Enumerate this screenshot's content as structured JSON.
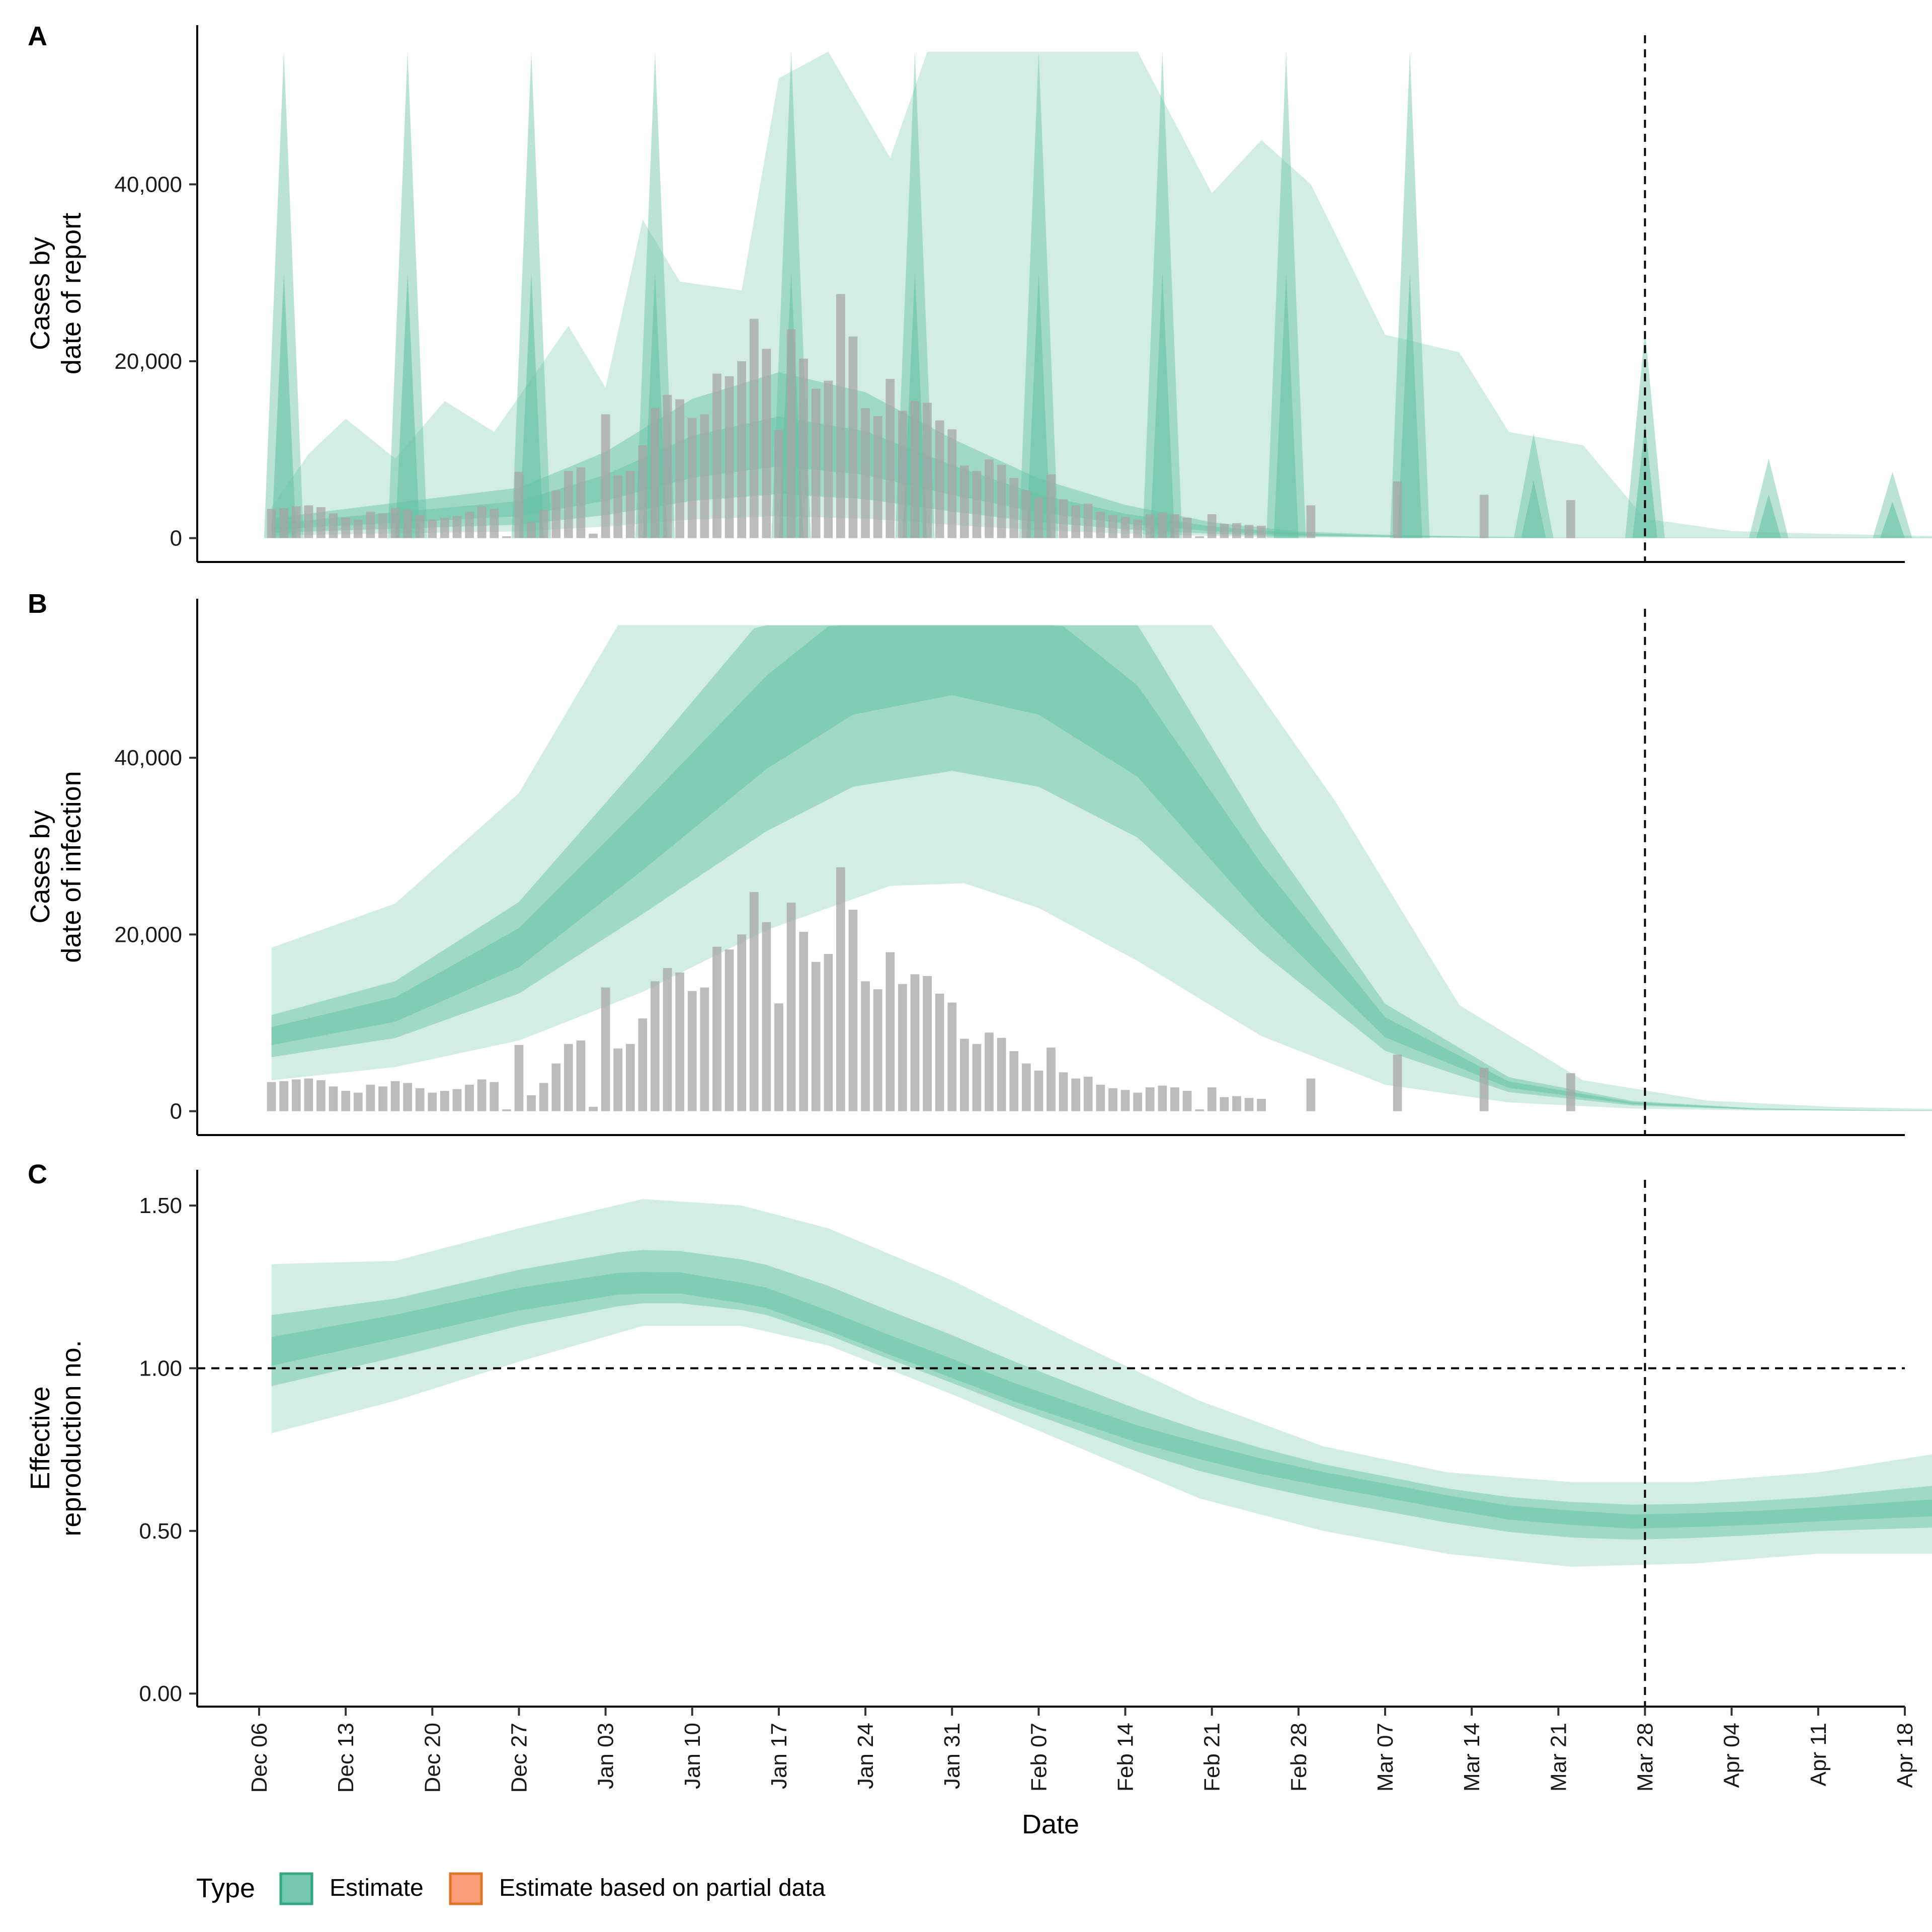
{
  "colors": {
    "estimate": "#66c2a5",
    "estimate_border": "#1b9e77",
    "partial": "#fc8d62",
    "partial_border": "#d95f02",
    "bars": "#a6a6a6",
    "axis": "#000000"
  },
  "legend": {
    "title": "Type",
    "items": [
      {
        "label": "Estimate",
        "color": "#66c2a5",
        "border": "#1b9e77"
      },
      {
        "label": "Estimate based on partial data",
        "color": "#fc8d62",
        "border": "#d95f02"
      }
    ]
  },
  "x_axis": {
    "title": "Date",
    "ticks": [
      "Dec 06",
      "Dec 13",
      "Dec 20",
      "Dec 27",
      "Jan 03",
      "Jan 10",
      "Jan 17",
      "Jan 24",
      "Jan 31",
      "Feb 07",
      "Feb 14",
      "Feb 21",
      "Feb 28",
      "Mar 07",
      "Mar 14",
      "Mar 21",
      "Mar 28",
      "Apr 04",
      "Apr 11",
      "Apr 18"
    ],
    "range": [
      "2020-12-01",
      "2021-04-18"
    ],
    "reference_line": "2021-03-28"
  },
  "chart_data": [
    {
      "panel": "A",
      "type": "area",
      "ylabel": [
        "Cases by",
        "date of report"
      ],
      "ylim": [
        -2700,
        58000
      ],
      "yticks": [
        0,
        20000,
        40000
      ],
      "ytick_labels": [
        "0",
        "20,000",
        "40,000"
      ],
      "start_date": "2020-12-07",
      "observed_cases": [
        3300,
        3400,
        3600,
        3700,
        3500,
        2800,
        2300,
        2100,
        3000,
        2800,
        3400,
        3200,
        2600,
        2100,
        2300,
        2500,
        3000,
        3600,
        3300,
        200,
        7500,
        1800,
        3200,
        5400,
        7600,
        8000,
        500,
        14000,
        7100,
        7600,
        10500,
        14700,
        16200,
        15700,
        13600,
        14000,
        18600,
        18300,
        20000,
        24800,
        21400,
        12200,
        23600,
        20300,
        16900,
        17800,
        27600,
        22800,
        14700,
        13800,
        18000,
        14400,
        15500,
        15300,
        13300,
        12300,
        8200,
        7600,
        8900,
        8300,
        6800,
        5400,
        4600,
        7200,
        4400,
        3700,
        3900,
        3000,
        2600,
        2400,
        2100,
        2700,
        2900,
        2700,
        2300,
        200,
        2700,
        1600,
        1700,
        1500,
        1400
      ],
      "observed_cases_late": [
        {
          "date": "2021-03-01",
          "value": 3700
        },
        {
          "date": "2021-03-08",
          "value": 6400
        },
        {
          "date": "2021-03-15",
          "value": 4900
        },
        {
          "date": "2021-03-22",
          "value": 4300
        }
      ],
      "estimate_median_envelope": [
        [
          0,
          1500
        ],
        [
          6,
          2200
        ],
        [
          13,
          3000
        ],
        [
          20,
          3800
        ],
        [
          27,
          6500
        ],
        [
          34,
          10500
        ],
        [
          41,
          12500
        ],
        [
          48,
          11000
        ],
        [
          55,
          7500
        ],
        [
          62,
          4500
        ],
        [
          69,
          2500
        ],
        [
          76,
          1200
        ],
        [
          83,
          500
        ],
        [
          90,
          250
        ],
        [
          97,
          120
        ],
        [
          104,
          40
        ]
      ],
      "estimate_upper_90": [
        [
          0,
          3500
        ],
        [
          3,
          9500
        ],
        [
          6,
          13500
        ],
        [
          10,
          9000
        ],
        [
          14,
          15500
        ],
        [
          18,
          12000
        ],
        [
          24,
          24000
        ],
        [
          27,
          17000
        ],
        [
          30,
          36000
        ],
        [
          33,
          29000
        ],
        [
          38,
          28000
        ],
        [
          41,
          52000
        ],
        [
          45,
          55000
        ],
        [
          50,
          43000
        ],
        [
          53,
          55000
        ],
        [
          60,
          55000
        ],
        [
          66,
          55000
        ],
        [
          70,
          55000
        ],
        [
          76,
          39000
        ],
        [
          80,
          45000
        ],
        [
          84,
          40000
        ],
        [
          90,
          23000
        ],
        [
          96,
          21000
        ],
        [
          100,
          12000
        ],
        [
          106,
          10500
        ],
        [
          111,
          2200
        ],
        [
          118,
          800
        ],
        [
          125,
          500
        ],
        [
          132,
          300
        ],
        [
          137,
          150
        ]
      ],
      "report_spikes": [
        1,
        11,
        21,
        31,
        42,
        52,
        62,
        72,
        82,
        92,
        102,
        111,
        121,
        131,
        141
      ]
    },
    {
      "panel": "B",
      "type": "area",
      "ylabel": [
        "Cases by",
        "date of infection"
      ],
      "ylim": [
        -2700,
        58000
      ],
      "yticks": [
        0,
        20000,
        40000
      ],
      "ytick_labels": [
        "0",
        "20,000",
        "40,000"
      ],
      "estimate_median": [
        [
          0,
          8500
        ],
        [
          10,
          11500
        ],
        [
          20,
          18500
        ],
        [
          30,
          31000
        ],
        [
          40,
          44000
        ],
        [
          47,
          51000
        ],
        [
          55,
          53500
        ],
        [
          62,
          51000
        ],
        [
          70,
          43000
        ],
        [
          80,
          25000
        ],
        [
          90,
          9500
        ],
        [
          100,
          3000
        ],
        [
          110,
          900
        ],
        [
          120,
          250
        ],
        [
          130,
          80
        ],
        [
          140,
          30
        ],
        [
          150,
          10
        ]
      ],
      "estimate_lower_90": [
        [
          0,
          3500
        ],
        [
          10,
          5000
        ],
        [
          20,
          8000
        ],
        [
          30,
          13500
        ],
        [
          40,
          20500
        ],
        [
          50,
          25500
        ],
        [
          56,
          25800
        ],
        [
          62,
          23000
        ],
        [
          70,
          17000
        ],
        [
          80,
          8500
        ],
        [
          90,
          3000
        ],
        [
          100,
          1000
        ],
        [
          110,
          300
        ],
        [
          120,
          80
        ],
        [
          130,
          20
        ],
        [
          150,
          5
        ]
      ],
      "estimate_upper_90": [
        [
          0,
          18500
        ],
        [
          10,
          23500
        ],
        [
          20,
          36000
        ],
        [
          28,
          55000
        ],
        [
          76,
          55000
        ],
        [
          86,
          35000
        ],
        [
          96,
          12000
        ],
        [
          106,
          3500
        ],
        [
          116,
          1200
        ],
        [
          126,
          500
        ],
        [
          136,
          200
        ],
        [
          150,
          80
        ]
      ],
      "partial_upper_90": [
        [
          151,
          100
        ],
        [
          161,
          100
        ]
      ]
    },
    {
      "panel": "C",
      "type": "area",
      "ylabel": [
        "Effective",
        "reproduction no."
      ],
      "ylim": [
        -0.04,
        1.61
      ],
      "yticks": [
        0,
        0.5,
        1,
        1.5
      ],
      "ytick_labels": [
        "0.00",
        "0.50",
        "1.00",
        "1.50"
      ],
      "reference_y": 1.0,
      "estimate_median": [
        [
          0,
          1.05
        ],
        [
          10,
          1.13
        ],
        [
          20,
          1.21
        ],
        [
          28,
          1.25
        ],
        [
          33,
          1.25
        ],
        [
          40,
          1.2
        ],
        [
          50,
          1.05
        ],
        [
          60,
          0.91
        ],
        [
          70,
          0.79
        ],
        [
          80,
          0.7
        ],
        [
          90,
          0.63
        ],
        [
          100,
          0.56
        ],
        [
          110,
          0.53
        ],
        [
          120,
          0.54
        ],
        [
          130,
          0.56
        ],
        [
          140,
          0.58
        ],
        [
          150,
          0.58
        ],
        [
          161,
          0.58
        ]
      ],
      "estimate_upper_90": [
        [
          0,
          1.32
        ],
        [
          10,
          1.33
        ],
        [
          20,
          1.43
        ],
        [
          30,
          1.52
        ],
        [
          38,
          1.5
        ],
        [
          45,
          1.43
        ],
        [
          55,
          1.27
        ],
        [
          65,
          1.08
        ],
        [
          75,
          0.9
        ],
        [
          85,
          0.76
        ],
        [
          95,
          0.68
        ],
        [
          105,
          0.65
        ],
        [
          115,
          0.65
        ],
        [
          125,
          0.68
        ],
        [
          135,
          0.74
        ],
        [
          145,
          0.83
        ],
        [
          151,
          0.95
        ],
        [
          161,
          1.14
        ]
      ],
      "estimate_lower_90": [
        [
          0,
          0.8
        ],
        [
          10,
          0.9
        ],
        [
          20,
          1.02
        ],
        [
          30,
          1.13
        ],
        [
          38,
          1.13
        ],
        [
          45,
          1.07
        ],
        [
          55,
          0.92
        ],
        [
          65,
          0.76
        ],
        [
          75,
          0.6
        ],
        [
          85,
          0.5
        ],
        [
          95,
          0.43
        ],
        [
          105,
          0.39
        ],
        [
          115,
          0.4
        ],
        [
          125,
          0.43
        ],
        [
          135,
          0.43
        ],
        [
          145,
          0.39
        ],
        [
          151,
          0.35
        ],
        [
          161,
          0.29
        ]
      ]
    }
  ]
}
